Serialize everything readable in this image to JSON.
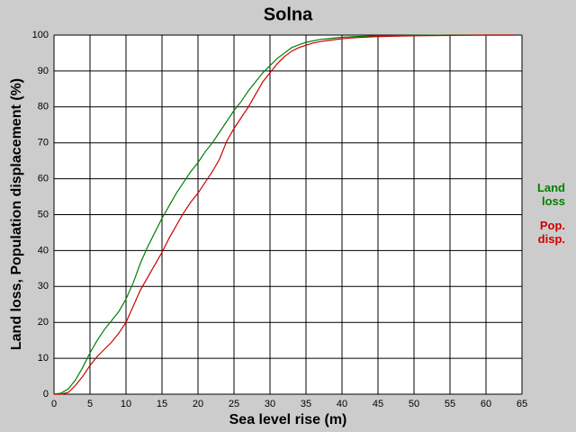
{
  "chart_data": {
    "type": "line",
    "title": "Solna",
    "x_label": "Sea level rise (m)",
    "y_label": "Land loss, Population displacement (%)",
    "x": [
      0,
      1,
      2,
      3,
      4,
      5,
      6,
      7,
      8,
      9,
      10,
      11,
      12,
      13,
      14,
      15,
      16,
      17,
      18,
      19,
      20,
      21,
      22,
      23,
      24,
      25,
      26,
      27,
      28,
      29,
      30,
      31,
      32,
      33,
      34,
      35,
      36,
      37,
      38,
      40,
      42,
      45,
      50,
      55,
      60,
      64
    ],
    "series": [
      {
        "name": "Land loss",
        "color": "#008000",
        "values": [
          0,
          0.3,
          1.5,
          4,
          7.5,
          11.5,
          15,
          18,
          20.5,
          23,
          26.5,
          31,
          36.5,
          41,
          45,
          49,
          52.5,
          56,
          59,
          62,
          64.5,
          67.5,
          70,
          73,
          76,
          79,
          81.5,
          84.5,
          87,
          89.5,
          91.5,
          93.5,
          95,
          96.5,
          97.3,
          98,
          98.4,
          98.8,
          99,
          99.4,
          99.6,
          99.8,
          99.9,
          100,
          100,
          100
        ]
      },
      {
        "name": "Pop. disp.",
        "color": "#cc0000",
        "values": [
          0,
          0,
          0.5,
          2.5,
          5,
          8,
          10.5,
          12.5,
          14.5,
          17,
          20,
          24.5,
          29,
          32.5,
          36,
          39.5,
          43.5,
          47,
          50.5,
          53.5,
          56,
          59,
          62,
          65.5,
          70.5,
          74,
          77,
          80,
          83.5,
          87,
          89.5,
          92,
          94,
          95.5,
          96.5,
          97.2,
          97.8,
          98.2,
          98.5,
          99,
          99.3,
          99.6,
          99.8,
          99.9,
          100,
          100
        ]
      }
    ],
    "xlim": [
      0,
      65
    ],
    "xticks": [
      0,
      5,
      10,
      15,
      20,
      25,
      30,
      35,
      40,
      45,
      50,
      55,
      60,
      65
    ],
    "ylim": [
      0,
      100
    ],
    "yticks": [
      0,
      10,
      20,
      30,
      40,
      50,
      60,
      70,
      80,
      90,
      100
    ],
    "grid": true
  }
}
